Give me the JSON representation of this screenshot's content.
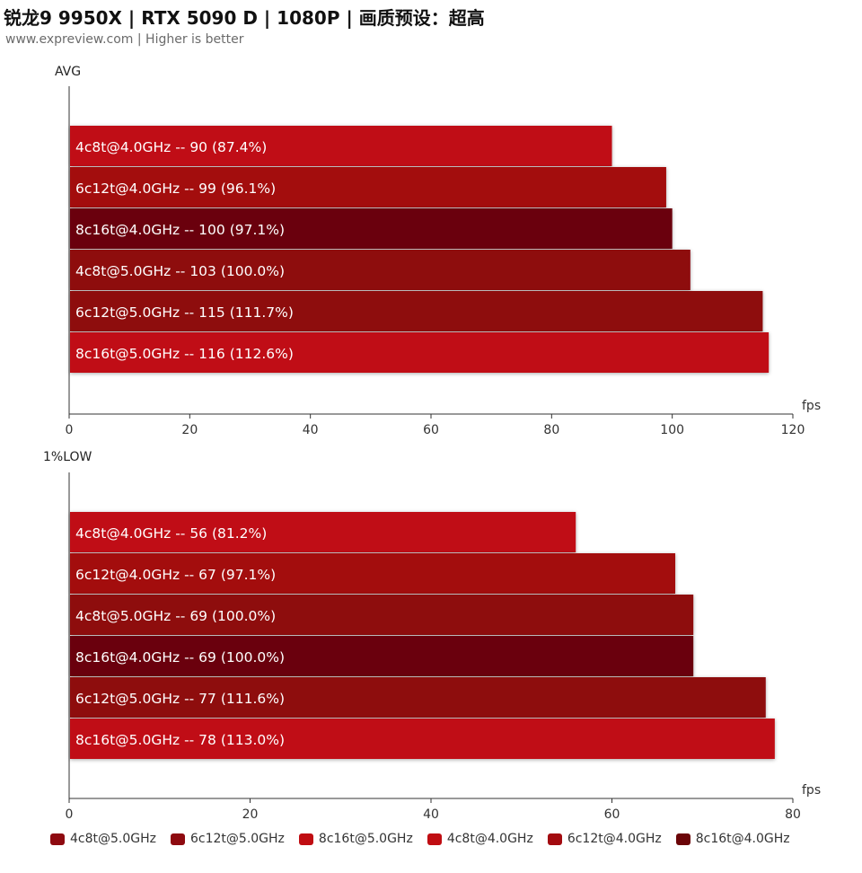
{
  "title": "锐龙9 9950X | RTX 5090 D | 1080P | 画质预设：超高",
  "subtitle": "www.expreview.com | Higher is better",
  "colors": {
    "4c8t@5.0GHz": "#8e0a10",
    "6c12t@5.0GHz": "#8e0a10",
    "8c16t@5.0GHz": "#c00d12",
    "4c8t@4.0GHz": "#c00d12",
    "6c12t@4.0GHz": "#a30b10",
    "8c16t@4.0GHz": "#6b0508"
  },
  "legend": [
    "4c8t@5.0GHz",
    "6c12t@5.0GHz",
    "8c16t@5.0GHz",
    "4c8t@4.0GHz",
    "6c12t@4.0GHz",
    "8c16t@4.0GHz"
  ],
  "chart_data": [
    {
      "type": "bar",
      "orientation": "horizontal",
      "ylabel": "AVG",
      "xlabel": "fps",
      "xlim": [
        0,
        120
      ],
      "xticks": [
        0,
        20,
        40,
        60,
        80,
        100,
        120
      ],
      "bars": [
        {
          "name": "4c8t@4.0GHz",
          "value": 90,
          "pct": "87.4%",
          "label": "4c8t@4.0GHz  --  90 (87.4%)"
        },
        {
          "name": "6c12t@4.0GHz",
          "value": 99,
          "pct": "96.1%",
          "label": "6c12t@4.0GHz  --  99 (96.1%)"
        },
        {
          "name": "8c16t@4.0GHz",
          "value": 100,
          "pct": "97.1%",
          "label": "8c16t@4.0GHz  --  100 (97.1%)"
        },
        {
          "name": "4c8t@5.0GHz",
          "value": 103,
          "pct": "100.0%",
          "label": "4c8t@5.0GHz  --  103 (100.0%)"
        },
        {
          "name": "6c12t@5.0GHz",
          "value": 115,
          "pct": "111.7%",
          "label": "6c12t@5.0GHz  --  115 (111.7%)"
        },
        {
          "name": "8c16t@5.0GHz",
          "value": 116,
          "pct": "112.6%",
          "label": "8c16t@5.0GHz  --  116 (112.6%)"
        }
      ]
    },
    {
      "type": "bar",
      "orientation": "horizontal",
      "ylabel": "1%LOW",
      "xlabel": "fps",
      "xlim": [
        0,
        80
      ],
      "xticks": [
        0,
        20,
        40,
        60,
        80
      ],
      "bars": [
        {
          "name": "4c8t@4.0GHz",
          "value": 56,
          "pct": "81.2%",
          "label": "4c8t@4.0GHz  --  56 (81.2%)"
        },
        {
          "name": "6c12t@4.0GHz",
          "value": 67,
          "pct": "97.1%",
          "label": "6c12t@4.0GHz  --  67 (97.1%)"
        },
        {
          "name": "4c8t@5.0GHz",
          "value": 69,
          "pct": "100.0%",
          "label": "4c8t@5.0GHz  --  69 (100.0%)"
        },
        {
          "name": "8c16t@4.0GHz",
          "value": 69,
          "pct": "100.0%",
          "label": "8c16t@4.0GHz  --  69 (100.0%)"
        },
        {
          "name": "6c12t@5.0GHz",
          "value": 77,
          "pct": "111.6%",
          "label": "6c12t@5.0GHz  --  77 (111.6%)"
        },
        {
          "name": "8c16t@5.0GHz",
          "value": 78,
          "pct": "113.0%",
          "label": "8c16t@5.0GHz  --  78 (113.0%)"
        }
      ]
    }
  ]
}
